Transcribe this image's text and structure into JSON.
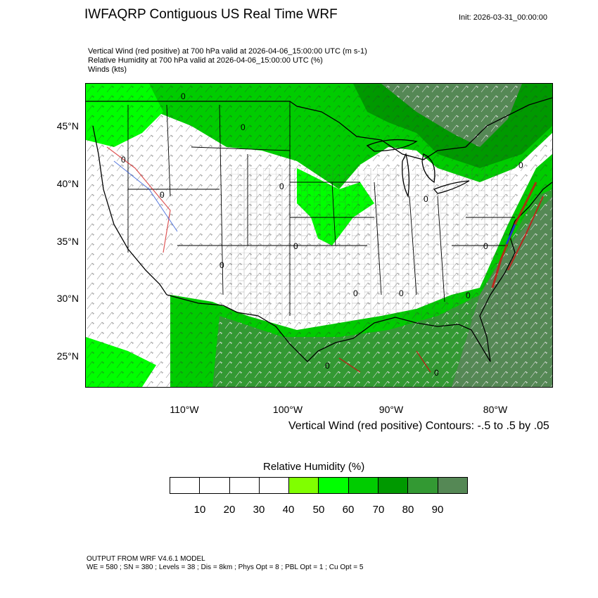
{
  "header": {
    "title": "IWFAQRP Contiguous US Real Time WRF",
    "init": "Init: 2026-03-31_00:00:00",
    "subtitle_lines": [
      "Vertical Wind (red positive) at 700 hPa valid at 2026-04-06_15:00:00 UTC   (m s-1)",
      "Relative Humidity at 700 hPa valid at 2026-04-06_15:00:00 UTC   (%)",
      "Winds   (kts)"
    ]
  },
  "map": {
    "lat_labels": [
      "45°N",
      "40°N",
      "35°N",
      "30°N",
      "25°N"
    ],
    "lon_labels": [
      "110°W",
      "100°W",
      "90°W",
      "80°W"
    ],
    "contour_label": "0",
    "colors": {
      "rh_50": "#80ff00",
      "rh_60": "#00ff00",
      "rh_70": "#00cc00",
      "rh_80": "#009900",
      "rh_90": "#339933",
      "rh_95": "#558855",
      "ascent": "#d01010",
      "descent": "#1040d0"
    }
  },
  "contour_note": "Vertical Wind (red positive) Contours: -.5 to .5 by .05",
  "legend": {
    "title": "Relative Humidity   (%)",
    "colors": [
      "#ffffff",
      "#ffffff",
      "#ffffff",
      "#ffffff",
      "#80ff00",
      "#00ff00",
      "#00cc00",
      "#009900",
      "#339933",
      "#558855"
    ],
    "labels": [
      "10",
      "20",
      "30",
      "40",
      "50",
      "60",
      "70",
      "80",
      "90"
    ]
  },
  "footer": {
    "line1": "OUTPUT FROM WRF V4.6.1 MODEL",
    "line2": "WE = 580 ; SN = 380 ; Levels = 38 ; Dis = 8km ; Phys Opt = 8 ; PBL Opt = 1 ; Cu Opt = 5"
  }
}
